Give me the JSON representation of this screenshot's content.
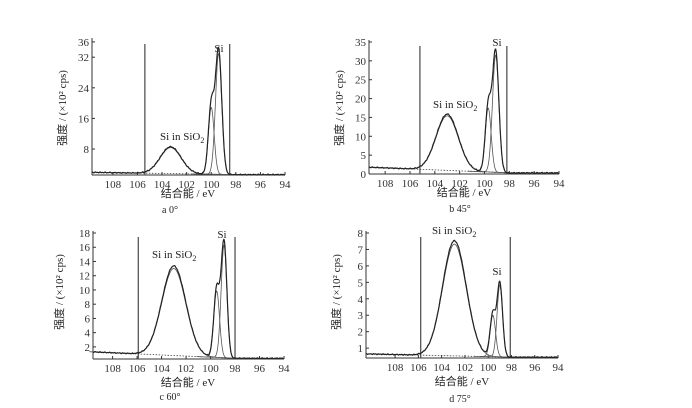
{
  "colors": {
    "line": "#222222",
    "component": "#555555",
    "marker": "#555555",
    "baseline": "#444444"
  },
  "chart_data": [
    {
      "type": "line",
      "caption": "a   0°",
      "xlabel": "结合能 / eV",
      "ylabel": "强度 / (×10² cps)",
      "xlim": [
        109.7,
        94
      ],
      "ylim": [
        1.2,
        36.5
      ],
      "xticks": [
        108,
        106,
        104,
        102,
        100,
        98,
        96,
        94
      ],
      "yticks": [
        8,
        16,
        24,
        32,
        36
      ],
      "markers": [
        105.4,
        98.5
      ],
      "baseline": {
        "left": 1.9,
        "right": 1.3
      },
      "peaks": [
        {
          "label": "Si in SiO2",
          "center": 103.3,
          "height": 7.0,
          "fwhm": 2.0
        },
        {
          "label": "Si",
          "center": 100.0,
          "height": 18.0,
          "fwhm": 0.55
        },
        {
          "label": "Si",
          "center": 99.4,
          "height": 32.5,
          "fwhm": 0.6
        }
      ],
      "annotations": {
        "oxide": "Si in SiO",
        "oxide_sub": "2",
        "si": "Si"
      }
    },
    {
      "type": "line",
      "caption": "b   45°",
      "xlabel": "结合能 / eV",
      "ylabel": "强度 / (×10² cps)",
      "xlim": [
        109.3,
        94
      ],
      "ylim": [
        0,
        35
      ],
      "xticks": [
        108,
        106,
        104,
        102,
        100,
        98,
        96,
        94
      ],
      "yticks": [
        0,
        5,
        10,
        15,
        20,
        25,
        30,
        35
      ],
      "markers": [
        105.2,
        98.2
      ],
      "baseline": {
        "left": 1.8,
        "right": 0.3
      },
      "peaks": [
        {
          "label": "Si in SiO2",
          "center": 103.0,
          "height": 14.9,
          "fwhm": 2.1
        },
        {
          "label": "Si",
          "center": 99.7,
          "height": 17.5,
          "fwhm": 0.55
        },
        {
          "label": "Si",
          "center": 99.1,
          "height": 32.0,
          "fwhm": 0.6
        }
      ],
      "annotations": {
        "oxide": "Si in SiO",
        "oxide_sub": "2",
        "si": "Si"
      }
    },
    {
      "type": "line",
      "caption": "c   60°",
      "xlabel": "结合能 / eV",
      "ylabel": "强度 / (×10² cps)",
      "xlim": [
        109.6,
        94
      ],
      "ylim": [
        0.3,
        18
      ],
      "xticks": [
        108,
        106,
        104,
        102,
        100,
        98,
        96,
        94
      ],
      "yticks": [
        2,
        4,
        6,
        8,
        10,
        12,
        14,
        16,
        18
      ],
      "markers": [
        105.9,
        98.0
      ],
      "baseline": {
        "left": 1.3,
        "right": 0.4
      },
      "peaks": [
        {
          "label": "Si in SiO2",
          "center": 103.0,
          "height": 12.6,
          "fwhm": 2.3
        },
        {
          "label": "Si",
          "center": 99.5,
          "height": 9.6,
          "fwhm": 0.55
        },
        {
          "label": "Si",
          "center": 98.9,
          "height": 16.3,
          "fwhm": 0.55
        }
      ],
      "annotations": {
        "oxide": "Si in SiO",
        "oxide_sub": "2",
        "si": "Si"
      }
    },
    {
      "type": "line",
      "caption": "d   75°",
      "xlabel": "结合能 / eV",
      "ylabel": "强度 / (×10² cps)",
      "xlim": [
        110.5,
        94
      ],
      "ylim": [
        0.4,
        8
      ],
      "xticks": [
        108,
        106,
        104,
        102,
        100,
        98,
        96,
        94
      ],
      "yticks": [
        1,
        2,
        3,
        4,
        5,
        6,
        7,
        8
      ],
      "markers": [
        105.8,
        98.1
      ],
      "baseline": {
        "left": 0.65,
        "right": 0.45
      },
      "peaks": [
        {
          "label": "Si in SiO2",
          "center": 102.9,
          "height": 7.0,
          "fwhm": 2.4
        },
        {
          "label": "Si",
          "center": 99.6,
          "height": 2.6,
          "fwhm": 0.55
        },
        {
          "label": "Si",
          "center": 99.0,
          "height": 4.5,
          "fwhm": 0.55
        }
      ],
      "annotations": {
        "oxide": "Si in SiO",
        "oxide_sub": "2",
        "si": "Si"
      }
    }
  ]
}
